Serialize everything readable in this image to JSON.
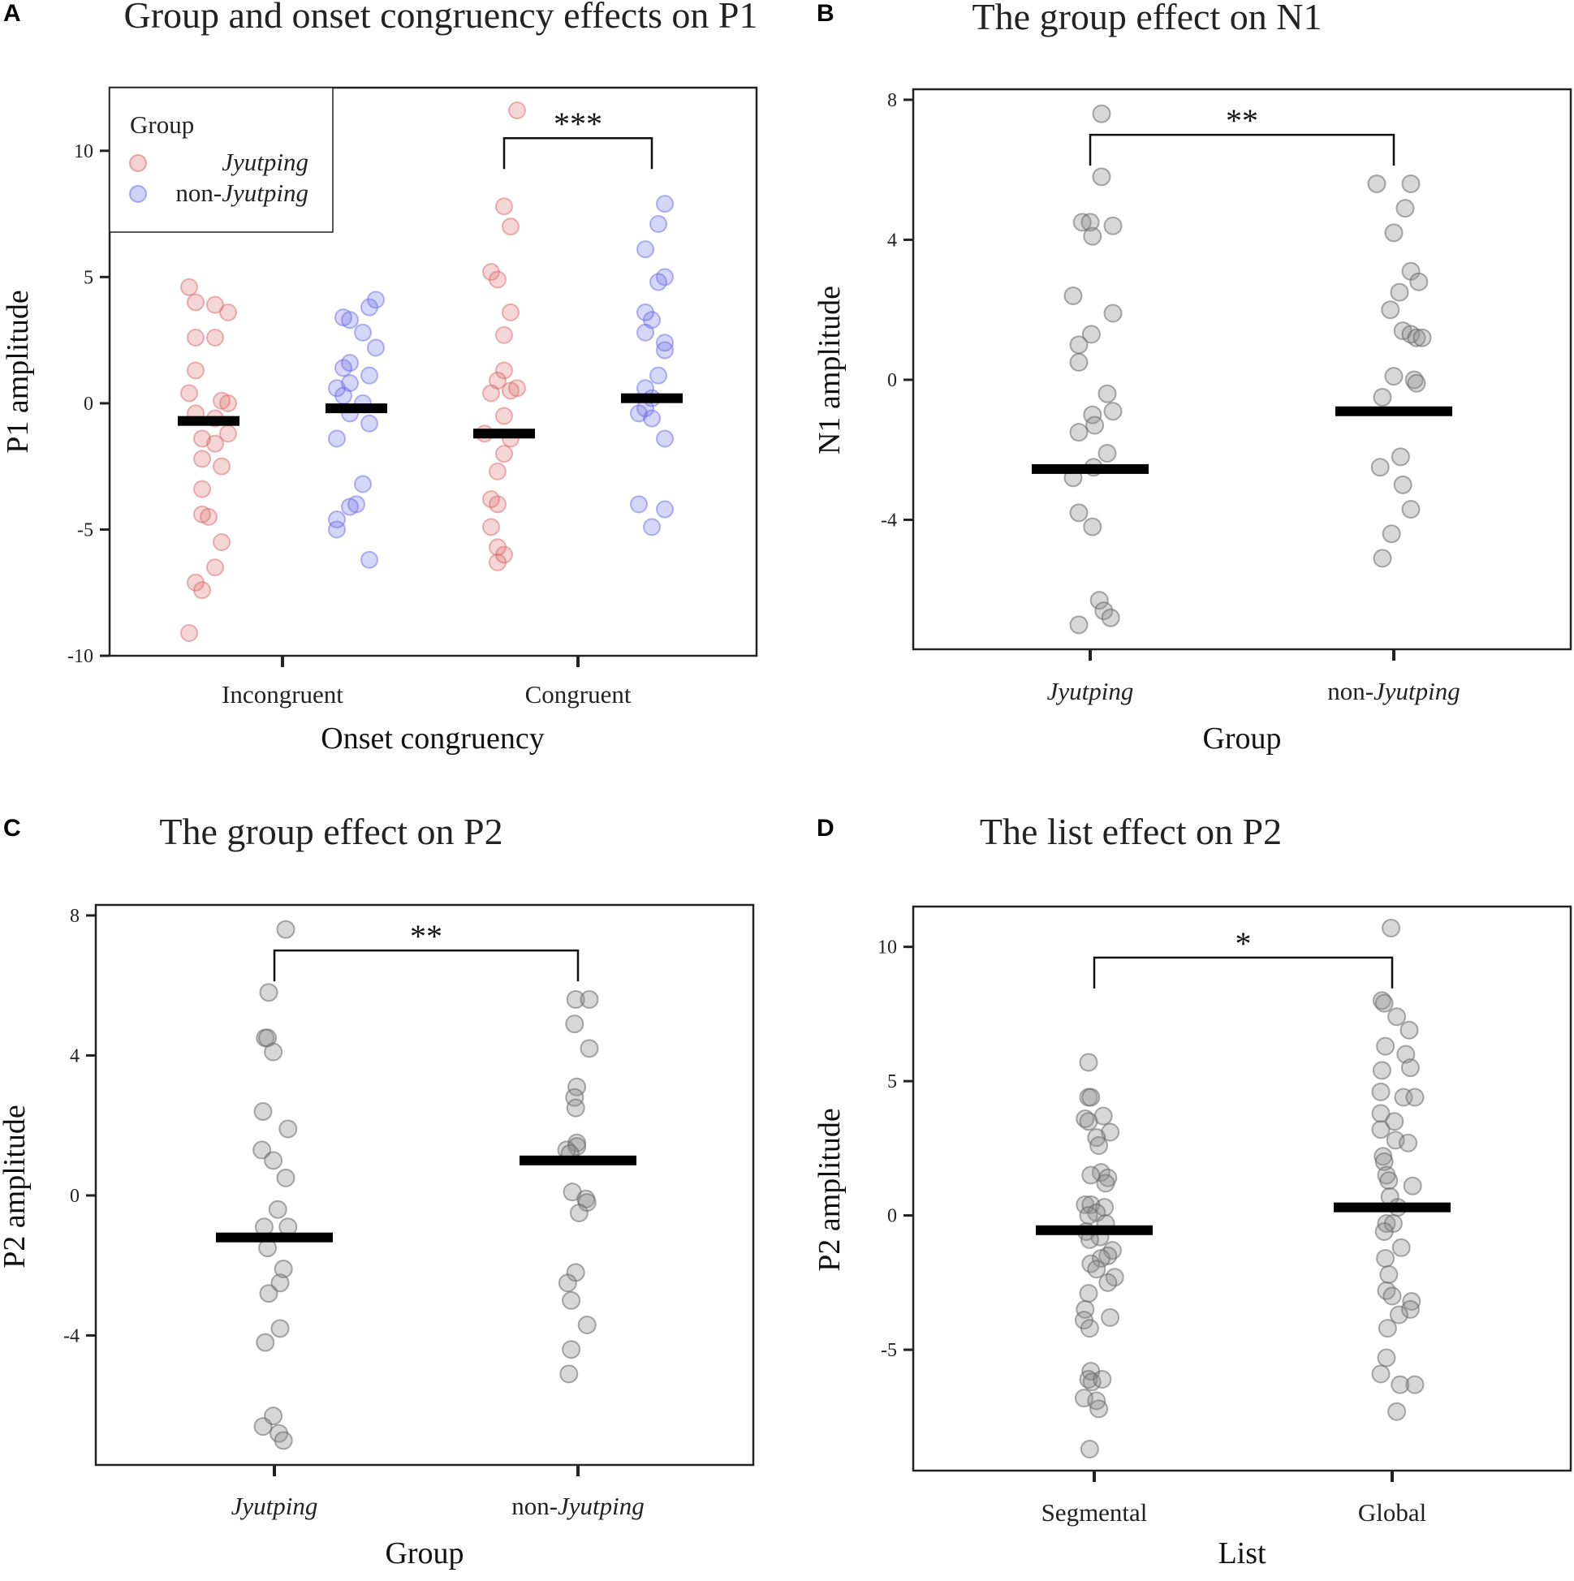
{
  "chart_data": [
    {
      "panel": "A",
      "type": "scatter",
      "title": "Group and onset congruency effects on P1",
      "xlabel": "Onset congruency",
      "ylabel": "P1 amplitude",
      "ylim": [
        -10,
        12.5
      ],
      "yticks": [
        10,
        5,
        0,
        -5,
        -10
      ],
      "ytick_labels": [
        "10",
        "5",
        "0",
        "-5",
        "-10"
      ],
      "categories": [
        {
          "label": "Incongruent",
          "italic": false,
          "prefix": ""
        },
        {
          "label": "Congruent",
          "italic": false,
          "prefix": ""
        }
      ],
      "legend": {
        "title": "Group",
        "placement": "top-left",
        "entries": [
          {
            "prefix": "",
            "italic_text": "Jyutping",
            "color": "#d96a6a"
          },
          {
            "prefix": "non-",
            "italic_text": "Jyutping",
            "color": "#6a6ae8"
          }
        ]
      },
      "series": [
        {
          "name": "Jyutping",
          "color": "#d96a6a",
          "category_index": 0,
          "offset": -0.25,
          "mean": -0.7,
          "values": [
            4.6,
            4.0,
            3.9,
            3.6,
            2.6,
            2.6,
            1.3,
            0.4,
            0.1,
            0.0,
            -0.4,
            -0.6,
            -1.2,
            -1.4,
            -1.6,
            -2.2,
            -2.5,
            -3.4,
            -4.4,
            -4.5,
            -5.5,
            -6.5,
            -7.1,
            -7.4,
            -9.1
          ],
          "jitter": [
            -3,
            -2,
            1,
            3,
            -2,
            1,
            -2,
            -3,
            2,
            3,
            -2,
            1,
            3,
            -1,
            1,
            -1,
            2,
            -1,
            -1,
            0,
            2,
            1,
            -2,
            -1,
            -3
          ]
        },
        {
          "name": "non-Jyutping",
          "color": "#6a6ae8",
          "category_index": 0,
          "offset": 0.25,
          "mean": -0.2,
          "values": [
            4.1,
            3.8,
            3.4,
            3.3,
            2.8,
            2.2,
            1.6,
            1.4,
            1.1,
            0.8,
            0.6,
            0.3,
            0.0,
            -0.4,
            -0.8,
            -1.4,
            -3.2,
            -4.0,
            -4.1,
            -4.6,
            -5.0,
            -6.2
          ],
          "jitter": [
            3,
            2,
            -2,
            -1,
            1,
            3,
            -1,
            -2,
            2,
            -1,
            -3,
            -2,
            1,
            -1,
            2,
            -3,
            1,
            0,
            -1,
            -3,
            -3,
            2
          ]
        },
        {
          "name": "Jyutping",
          "color": "#d96a6a",
          "category_index": 1,
          "offset": -0.25,
          "mean": -1.2,
          "values": [
            11.6,
            7.8,
            7.0,
            5.2,
            4.9,
            3.6,
            2.7,
            1.3,
            0.9,
            0.6,
            0.5,
            0.4,
            -0.5,
            -1.2,
            -1.4,
            -2.0,
            -2.7,
            -3.8,
            -4.0,
            -4.9,
            -5.7,
            -6.0,
            -6.3
          ],
          "jitter": [
            2,
            0,
            1,
            -2,
            -1,
            1,
            0,
            0,
            -1,
            2,
            1,
            -2,
            0,
            -3,
            1,
            0,
            -1,
            -2,
            -1,
            -2,
            -1,
            0,
            -1
          ]
        },
        {
          "name": "non-Jyutping",
          "color": "#6a6ae8",
          "category_index": 1,
          "offset": 0.25,
          "mean": 0.2,
          "values": [
            7.9,
            7.1,
            6.1,
            5.0,
            4.8,
            3.6,
            3.3,
            2.8,
            2.4,
            2.1,
            1.1,
            0.6,
            0.2,
            -0.2,
            -0.4,
            -0.6,
            -1.4,
            -4.0,
            -4.2,
            -4.9
          ],
          "jitter": [
            2,
            1,
            -1,
            2,
            1,
            -1,
            0,
            -1,
            2,
            2,
            1,
            -1,
            0,
            -1,
            -2,
            0,
            2,
            -2,
            2,
            0
          ]
        }
      ],
      "significance": {
        "label": "***",
        "from_category": 1,
        "from_offset": -0.25,
        "to_offset": 0.25,
        "y": 10.5
      }
    },
    {
      "panel": "B",
      "type": "scatter",
      "title": "The group effect on N1",
      "xlabel": "Group",
      "ylabel": "N1 amplitude",
      "ylim": [
        -7.7,
        8.3
      ],
      "yticks": [
        8,
        4,
        0,
        -4
      ],
      "ytick_labels": [
        "8",
        "4",
        "0",
        "-4"
      ],
      "categories": [
        {
          "label": "Jyutping",
          "italic": true,
          "prefix": ""
        },
        {
          "label": "Jyutping",
          "italic": true,
          "prefix": "non-"
        }
      ],
      "series": [
        {
          "name": "Jyutping",
          "color": "#8c8c8c",
          "category_index": 0,
          "offset": 0,
          "mean": -2.55,
          "values": [
            7.6,
            5.8,
            4.5,
            4.5,
            4.4,
            4.1,
            2.4,
            1.9,
            1.3,
            1.0,
            0.5,
            -0.4,
            -0.9,
            -1.0,
            -1.3,
            -1.5,
            -2.1,
            -2.5,
            -2.8,
            -3.8,
            -4.2,
            -6.3,
            -6.6,
            -6.8,
            -7.0
          ],
          "jitter": [
            1,
            1,
            -0.7,
            0,
            2,
            0.2,
            -1.5,
            2,
            0.1,
            -1,
            -1,
            1.5,
            2,
            0.2,
            0.4,
            -1,
            1.5,
            0.3,
            -1.5,
            -1,
            0.2,
            0.8,
            1.2,
            1.8,
            -1
          ]
        },
        {
          "name": "non-Jyutping",
          "color": "#8c8c8c",
          "category_index": 1,
          "offset": 0,
          "mean": -0.9,
          "values": [
            5.6,
            5.6,
            4.9,
            4.2,
            3.1,
            2.8,
            2.5,
            2.0,
            1.4,
            1.3,
            1.2,
            1.2,
            0.1,
            0.0,
            -0.1,
            -0.5,
            -2.2,
            -2.5,
            -3.0,
            -3.7,
            -4.4,
            -5.1
          ],
          "jitter": [
            -1.5,
            1.5,
            1,
            0,
            1.5,
            2.2,
            0.5,
            -0.3,
            0.8,
            1.5,
            2,
            2.5,
            0,
            1.8,
            2,
            -1,
            0.6,
            -1.2,
            0.8,
            1.5,
            -0.2,
            -1
          ]
        }
      ],
      "significance": {
        "label": "**",
        "from_category": 0,
        "to_category": 1,
        "y": 7.0
      }
    },
    {
      "panel": "C",
      "type": "scatter",
      "title": "The group effect on P2",
      "xlabel": "Group",
      "ylabel": "P2 amplitude",
      "ylim": [
        -7.7,
        8.3
      ],
      "yticks": [
        8,
        4,
        0,
        -4
      ],
      "ytick_labels": [
        "8",
        "4",
        "0",
        "-4"
      ],
      "categories": [
        {
          "label": "Jyutping",
          "italic": true,
          "prefix": ""
        },
        {
          "label": "Jyutping",
          "italic": true,
          "prefix": "non-"
        }
      ],
      "series": [
        {
          "name": "Jyutping",
          "color": "#8c8c8c",
          "category_index": 0,
          "offset": 0,
          "mean": -1.2,
          "values": [
            7.6,
            5.8,
            4.5,
            4.5,
            4.1,
            2.4,
            1.9,
            1.3,
            1.0,
            0.5,
            -0.4,
            -0.9,
            -0.9,
            -1.5,
            -2.1,
            -2.5,
            -2.8,
            -3.8,
            -4.2,
            -6.3,
            -6.6,
            -6.8,
            -7.0
          ],
          "jitter": [
            1,
            -0.5,
            -0.8,
            -0.6,
            -0.1,
            -1,
            1.2,
            -1.1,
            -0.1,
            1,
            0.3,
            -0.9,
            1.2,
            -0.6,
            0.8,
            0.5,
            -0.5,
            0.5,
            -0.8,
            -0.1,
            -1,
            0.4,
            0.8
          ]
        },
        {
          "name": "non-Jyutping",
          "color": "#8c8c8c",
          "category_index": 1,
          "offset": 0,
          "mean": 1.0,
          "values": [
            5.6,
            5.6,
            4.9,
            4.2,
            3.1,
            2.8,
            2.5,
            1.5,
            1.4,
            1.3,
            1.2,
            0.1,
            -0.1,
            -0.2,
            -0.5,
            -2.2,
            -2.5,
            -3.0,
            -3.7,
            -4.4,
            -5.1
          ],
          "jitter": [
            -0.2,
            1,
            -0.3,
            1,
            -0.1,
            -0.3,
            -0.2,
            -0.1,
            -0.1,
            -1,
            -0.7,
            -0.5,
            0.7,
            0.8,
            0.1,
            -0.2,
            -0.9,
            -0.6,
            0.8,
            -0.6,
            -0.8
          ]
        }
      ],
      "significance": {
        "label": "**",
        "from_category": 0,
        "to_category": 1,
        "y": 7.0
      }
    },
    {
      "panel": "D",
      "type": "scatter",
      "title": "The list effect on P2",
      "xlabel": "List",
      "ylabel": "P2 amplitude",
      "ylim": [
        -9.5,
        11.5
      ],
      "yticks": [
        10,
        5,
        0,
        -5
      ],
      "ytick_labels": [
        "10",
        "5",
        "0",
        "-5"
      ],
      "categories": [
        {
          "label": "Segmental",
          "italic": false,
          "prefix": ""
        },
        {
          "label": "Global",
          "italic": false,
          "prefix": ""
        }
      ],
      "series": [
        {
          "name": "Segmental",
          "color": "#8c8c8c",
          "category_index": 0,
          "offset": 0,
          "mean": -0.55,
          "values": [
            5.7,
            4.4,
            4.4,
            3.7,
            3.6,
            3.5,
            3.1,
            2.9,
            2.6,
            1.6,
            1.5,
            1.4,
            1.2,
            0.4,
            0.4,
            0.3,
            0.1,
            0.0,
            -0.3,
            -0.6,
            -0.8,
            -0.9,
            -1.3,
            -1.5,
            -1.6,
            -1.8,
            -2.0,
            -2.3,
            -2.5,
            -2.9,
            -3.5,
            -3.8,
            -3.9,
            -4.2,
            -5.8,
            -6.1,
            -6.2,
            -6.1,
            -6.8,
            -6.9,
            -7.2,
            -8.7
          ],
          "jitter": [
            -0.5,
            -0.5,
            -0.3,
            0.8,
            -0.8,
            -0.5,
            1.4,
            0.2,
            0.4,
            0.6,
            -0.3,
            1.2,
            1.0,
            -0.8,
            -0.3,
            0.9,
            0.2,
            -0.5,
            1.0,
            -0.7,
            0.5,
            -0.4,
            1.6,
            1.2,
            0.6,
            -0.3,
            0.2,
            1.8,
            1.2,
            -0.5,
            -0.8,
            1.4,
            -0.9,
            -0.4,
            -0.3,
            -0.5,
            -0.2,
            0.7,
            -0.9,
            0.2,
            0.4,
            -0.4
          ]
        },
        {
          "name": "Global",
          "color": "#8c8c8c",
          "category_index": 1,
          "offset": 0,
          "mean": 0.3,
          "values": [
            10.7,
            8.0,
            7.9,
            7.4,
            6.9,
            6.3,
            6.0,
            5.5,
            5.4,
            4.6,
            4.4,
            4.4,
            3.8,
            3.5,
            3.2,
            2.8,
            2.7,
            2.2,
            2.0,
            1.5,
            1.3,
            1.1,
            0.7,
            0.3,
            -0.3,
            -0.3,
            -0.6,
            -1.2,
            -1.6,
            -2.2,
            -2.8,
            -3.0,
            -3.2,
            -3.5,
            -3.7,
            -4.2,
            -5.3,
            -5.9,
            -6.3,
            -6.3,
            -7.3
          ],
          "jitter": [
            -0.1,
            -0.9,
            -0.7,
            0.4,
            1.5,
            -0.6,
            1.2,
            1.6,
            -0.9,
            -1.0,
            1.0,
            2.0,
            -1.0,
            0.2,
            -1.0,
            0.3,
            1.4,
            -0.8,
            -0.7,
            -0.5,
            -0.3,
            1.8,
            -0.2,
            0.5,
            -0.5,
            0.1,
            -0.7,
            0.8,
            -0.6,
            -0.3,
            -0.5,
            0.0,
            1.7,
            1.6,
            0.6,
            -0.4,
            -0.5,
            -1.0,
            0.7,
            2.0,
            0.4
          ]
        }
      ],
      "significance": {
        "label": "*",
        "from_category": 0,
        "to_category": 1,
        "y": 9.6
      }
    }
  ]
}
